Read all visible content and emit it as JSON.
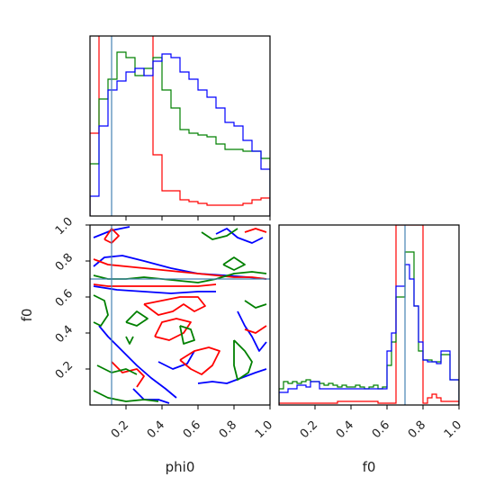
{
  "chart_data": {
    "type": "corner",
    "parameters": [
      "phi0",
      "f0"
    ],
    "xlabel_phi0": "phi0",
    "xlabel_f0": "f0",
    "ylabel_f0": "f0",
    "xlim": [
      0,
      1
    ],
    "ylim": [
      0,
      1
    ],
    "ticks": [
      0.2,
      0.4,
      0.6,
      0.8,
      1.0
    ],
    "tick_labels": [
      "0.2",
      "0.4",
      "0.6",
      "0.8",
      "1.0"
    ],
    "truths": {
      "phi0": 0.12,
      "f0": 0.7
    },
    "truth_color": "#4682b4",
    "series": [
      {
        "color": "#ff0000",
        "hist_phi0": [
          0.46,
          1.26,
          1.26,
          1.26,
          1.26,
          1.26,
          1.26,
          0.34,
          0.14,
          0.14,
          0.09,
          0.08,
          0.07,
          0.06,
          0.06,
          0.06,
          0.06,
          0.07,
          0.09,
          0.1
        ],
        "hist_f0": [
          0.01,
          0.01,
          0.01,
          0.01,
          0.01,
          0.01,
          0.01,
          0.01,
          0.01,
          0.01,
          0.01,
          0.01,
          0.01,
          0.02,
          0.02,
          0.02,
          0.02,
          0.02,
          0.02,
          0.02,
          0.02,
          0.02,
          0.01,
          0.01,
          0.01,
          0.01,
          1.0,
          1.0,
          1.0,
          1.0,
          1.0,
          1.0,
          0.01,
          0.04,
          0.06,
          0.04,
          0.02,
          0.02,
          0.02,
          0.02
        ]
      },
      {
        "color": "#008000",
        "hist_phi0": [
          0.29,
          0.65,
          0.76,
          0.91,
          0.88,
          0.78,
          0.82,
          0.88,
          0.7,
          0.6,
          0.48,
          0.46,
          0.45,
          0.44,
          0.4,
          0.37,
          0.37,
          0.36,
          0.36,
          0.32
        ],
        "hist_f0": [
          0.09,
          0.13,
          0.12,
          0.13,
          0.12,
          0.13,
          0.14,
          0.13,
          0.13,
          0.12,
          0.11,
          0.12,
          0.11,
          0.1,
          0.11,
          0.1,
          0.1,
          0.11,
          0.1,
          0.09,
          0.1,
          0.11,
          0.09,
          0.1,
          0.22,
          0.35,
          0.6,
          0.6,
          0.85,
          0.85,
          0.55,
          0.3,
          0.25,
          0.25,
          0.24,
          0.24,
          0.28,
          0.28,
          0.14,
          0.14
        ]
      },
      {
        "color": "#0000ff",
        "hist_phi0": [
          0.11,
          0.5,
          0.7,
          0.75,
          0.8,
          0.82,
          0.78,
          0.86,
          0.9,
          0.88,
          0.8,
          0.76,
          0.7,
          0.66,
          0.6,
          0.52,
          0.5,
          0.42,
          0.36,
          0.26
        ],
        "hist_f0": [
          0.07,
          0.07,
          0.09,
          0.09,
          0.11,
          0.11,
          0.1,
          0.13,
          0.13,
          0.09,
          0.09,
          0.09,
          0.09,
          0.09,
          0.09,
          0.09,
          0.09,
          0.09,
          0.09,
          0.09,
          0.09,
          0.09,
          0.09,
          0.09,
          0.3,
          0.4,
          0.66,
          0.66,
          0.78,
          0.7,
          0.55,
          0.35,
          0.25,
          0.24,
          0.24,
          0.23,
          0.3,
          0.3,
          0.14,
          0.14
        ]
      }
    ],
    "contours": [
      {
        "color": "#0000ff",
        "points": [
          [
            0.02,
            0.77
          ],
          [
            0.08,
            0.82
          ],
          [
            0.18,
            0.83
          ],
          [
            0.3,
            0.8
          ],
          [
            0.45,
            0.76
          ],
          [
            0.6,
            0.73
          ],
          [
            0.75,
            0.72
          ],
          [
            0.88,
            0.71
          ],
          [
            0.98,
            0.7
          ]
        ]
      },
      {
        "color": "#0000ff",
        "points": [
          [
            0.02,
            0.66
          ],
          [
            0.15,
            0.64
          ],
          [
            0.3,
            0.63
          ],
          [
            0.45,
            0.62
          ],
          [
            0.6,
            0.63
          ],
          [
            0.7,
            0.63
          ]
        ]
      },
      {
        "color": "#0000ff",
        "points": [
          [
            0.02,
            0.93
          ],
          [
            0.12,
            0.97
          ],
          [
            0.22,
            0.99
          ]
        ]
      },
      {
        "color": "#0000ff",
        "points": [
          [
            0.05,
            0.44
          ],
          [
            0.1,
            0.38
          ],
          [
            0.18,
            0.3
          ],
          [
            0.26,
            0.22
          ],
          [
            0.34,
            0.15
          ],
          [
            0.42,
            0.09
          ],
          [
            0.48,
            0.04
          ]
        ]
      },
      {
        "color": "#0000ff",
        "points": [
          [
            0.38,
            0.24
          ],
          [
            0.46,
            0.2
          ],
          [
            0.54,
            0.23
          ],
          [
            0.58,
            0.3
          ]
        ]
      },
      {
        "color": "#0000ff",
        "points": [
          [
            0.6,
            0.12
          ],
          [
            0.68,
            0.13
          ],
          [
            0.76,
            0.12
          ],
          [
            0.84,
            0.15
          ],
          [
            0.92,
            0.18
          ],
          [
            0.98,
            0.2
          ]
        ]
      },
      {
        "color": "#0000ff",
        "points": [
          [
            0.82,
            0.52
          ],
          [
            0.86,
            0.44
          ],
          [
            0.9,
            0.38
          ],
          [
            0.94,
            0.3
          ],
          [
            0.98,
            0.35
          ]
        ]
      },
      {
        "color": "#0000ff",
        "points": [
          [
            0.7,
            0.95
          ],
          [
            0.76,
            0.98
          ],
          [
            0.82,
            0.93
          ],
          [
            0.9,
            0.9
          ],
          [
            0.96,
            0.93
          ]
        ]
      },
      {
        "color": "#0000ff",
        "points": [
          [
            0.24,
            0.09
          ],
          [
            0.3,
            0.03
          ],
          [
            0.38,
            0.03
          ],
          [
            0.44,
            0.01
          ]
        ]
      },
      {
        "color": "#ff0000",
        "points": [
          [
            0.02,
            0.81
          ],
          [
            0.1,
            0.78
          ],
          [
            0.2,
            0.77
          ],
          [
            0.3,
            0.76
          ],
          [
            0.4,
            0.75
          ],
          [
            0.5,
            0.74
          ],
          [
            0.6,
            0.73
          ],
          [
            0.7,
            0.72
          ],
          [
            0.8,
            0.71
          ],
          [
            0.9,
            0.71
          ],
          [
            0.98,
            0.7
          ]
        ]
      },
      {
        "color": "#ff0000",
        "points": [
          [
            0.02,
            0.67
          ],
          [
            0.1,
            0.66
          ],
          [
            0.2,
            0.66
          ],
          [
            0.3,
            0.66
          ],
          [
            0.4,
            0.66
          ],
          [
            0.5,
            0.66
          ],
          [
            0.6,
            0.66
          ],
          [
            0.7,
            0.67
          ]
        ]
      },
      {
        "color": "#ff0000",
        "points": [
          [
            0.08,
            0.92
          ],
          [
            0.12,
            0.98
          ],
          [
            0.16,
            0.94
          ],
          [
            0.12,
            0.9
          ],
          [
            0.08,
            0.92
          ]
        ]
      },
      {
        "color": "#ff0000",
        "points": [
          [
            0.3,
            0.56
          ],
          [
            0.38,
            0.5
          ],
          [
            0.46,
            0.52
          ],
          [
            0.52,
            0.56
          ],
          [
            0.58,
            0.52
          ],
          [
            0.64,
            0.55
          ],
          [
            0.6,
            0.6
          ],
          [
            0.5,
            0.6
          ],
          [
            0.4,
            0.58
          ],
          [
            0.3,
            0.56
          ]
        ]
      },
      {
        "color": "#ff0000",
        "points": [
          [
            0.36,
            0.38
          ],
          [
            0.44,
            0.36
          ],
          [
            0.52,
            0.4
          ],
          [
            0.56,
            0.46
          ],
          [
            0.48,
            0.48
          ],
          [
            0.4,
            0.46
          ],
          [
            0.36,
            0.38
          ]
        ]
      },
      {
        "color": "#ff0000",
        "points": [
          [
            0.5,
            0.25
          ],
          [
            0.56,
            0.2
          ],
          [
            0.62,
            0.17
          ],
          [
            0.68,
            0.22
          ],
          [
            0.72,
            0.3
          ],
          [
            0.66,
            0.32
          ],
          [
            0.58,
            0.3
          ],
          [
            0.5,
            0.25
          ]
        ]
      },
      {
        "color": "#ff0000",
        "points": [
          [
            0.86,
            0.96
          ],
          [
            0.92,
            0.98
          ],
          [
            0.98,
            0.96
          ]
        ]
      },
      {
        "color": "#ff0000",
        "points": [
          [
            0.12,
            0.24
          ],
          [
            0.18,
            0.18
          ],
          [
            0.26,
            0.2
          ],
          [
            0.3,
            0.16
          ],
          [
            0.26,
            0.1
          ]
        ]
      },
      {
        "color": "#ff0000",
        "points": [
          [
            0.86,
            0.42
          ],
          [
            0.92,
            0.4
          ],
          [
            0.98,
            0.44
          ]
        ]
      },
      {
        "color": "#008000",
        "points": [
          [
            0.02,
            0.72
          ],
          [
            0.1,
            0.7
          ],
          [
            0.2,
            0.7
          ],
          [
            0.3,
            0.71
          ],
          [
            0.4,
            0.7
          ],
          [
            0.5,
            0.69
          ],
          [
            0.6,
            0.68
          ],
          [
            0.7,
            0.7
          ],
          [
            0.8,
            0.73
          ],
          [
            0.9,
            0.74
          ],
          [
            0.98,
            0.73
          ]
        ]
      },
      {
        "color": "#008000",
        "points": [
          [
            0.02,
            0.61
          ],
          [
            0.08,
            0.58
          ],
          [
            0.1,
            0.5
          ],
          [
            0.06,
            0.44
          ],
          [
            0.02,
            0.46
          ]
        ]
      },
      {
        "color": "#008000",
        "points": [
          [
            0.62,
            0.96
          ],
          [
            0.68,
            0.92
          ],
          [
            0.76,
            0.94
          ],
          [
            0.82,
            0.98
          ]
        ]
      },
      {
        "color": "#008000",
        "points": [
          [
            0.74,
            0.78
          ],
          [
            0.8,
            0.75
          ],
          [
            0.86,
            0.78
          ],
          [
            0.8,
            0.82
          ],
          [
            0.74,
            0.78
          ]
        ]
      },
      {
        "color": "#008000",
        "points": [
          [
            0.2,
            0.46
          ],
          [
            0.26,
            0.44
          ],
          [
            0.32,
            0.48
          ],
          [
            0.26,
            0.52
          ],
          [
            0.2,
            0.46
          ]
        ]
      },
      {
        "color": "#008000",
        "points": [
          [
            0.04,
            0.22
          ],
          [
            0.12,
            0.18
          ],
          [
            0.2,
            0.2
          ],
          [
            0.26,
            0.17
          ]
        ]
      },
      {
        "color": "#008000",
        "points": [
          [
            0.02,
            0.08
          ],
          [
            0.1,
            0.04
          ],
          [
            0.2,
            0.02
          ],
          [
            0.3,
            0.03
          ],
          [
            0.38,
            0.02
          ]
        ]
      },
      {
        "color": "#008000",
        "points": [
          [
            0.8,
            0.36
          ],
          [
            0.86,
            0.3
          ],
          [
            0.9,
            0.24
          ],
          [
            0.88,
            0.18
          ],
          [
            0.82,
            0.14
          ],
          [
            0.8,
            0.22
          ],
          [
            0.8,
            0.36
          ]
        ]
      },
      {
        "color": "#008000",
        "points": [
          [
            0.86,
            0.58
          ],
          [
            0.92,
            0.54
          ],
          [
            0.98,
            0.56
          ]
        ]
      },
      {
        "color": "#008000",
        "points": [
          [
            0.5,
            0.44
          ],
          [
            0.56,
            0.42
          ],
          [
            0.58,
            0.36
          ],
          [
            0.52,
            0.34
          ],
          [
            0.5,
            0.44
          ]
        ]
      },
      {
        "color": "#008000",
        "points": [
          [
            0.2,
            0.38
          ],
          [
            0.22,
            0.34
          ],
          [
            0.24,
            0.38
          ]
        ]
      }
    ]
  }
}
